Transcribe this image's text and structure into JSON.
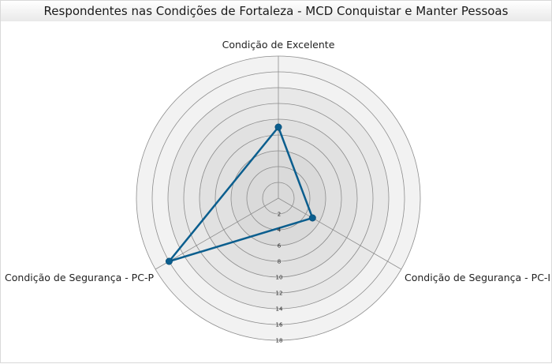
{
  "chart_data": {
    "type": "radar",
    "title": "Respondentes nas Condições de Fortaleza - MCD Conquistar e Manter Pessoas",
    "axes": [
      "Condição de Excelente",
      "Condição de Segurança - PC-I",
      "Condição de Segurança - PC-P"
    ],
    "ticks": [
      2,
      4,
      6,
      8,
      10,
      12,
      14,
      16,
      18
    ],
    "rmax": 18,
    "series": [
      {
        "values": [
          9,
          5,
          16
        ],
        "color": "#0b5e8e"
      }
    ],
    "ring_colors": [
      "#f2f2f2",
      "#e8e8e8",
      "#e1e1e1",
      "#dadada"
    ]
  }
}
